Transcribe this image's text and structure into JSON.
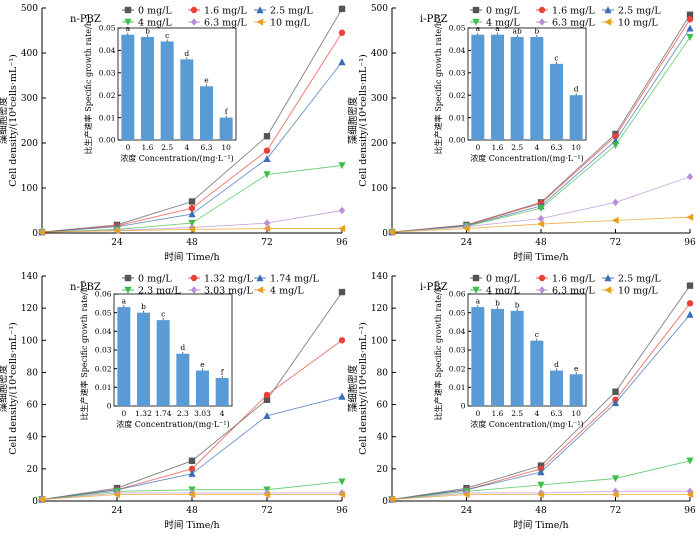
{
  "chart_data": [
    {
      "type": "line",
      "title": "n-PBZ",
      "xlabel": "时间 Time/h",
      "ylabel": "Cell density/(10⁴cells·mL⁻¹)",
      "ylabel_cn": "藻细胞密度",
      "x": [
        0,
        24,
        48,
        72,
        96
      ],
      "x_ticks": [
        "24",
        "48",
        "72",
        "96"
      ],
      "xlim": [
        0,
        96
      ],
      "ylim": [
        0,
        500
      ],
      "y_ticks": [
        0,
        100,
        200,
        300,
        400,
        500
      ],
      "series": [
        {
          "name": "0 mg/L",
          "color": "#555555",
          "marker": "square",
          "values": [
            2,
            18,
            70,
            215,
            498
          ]
        },
        {
          "name": "1.6 mg/L",
          "color": "#e8423a",
          "marker": "circle",
          "values": [
            2,
            16,
            55,
            183,
            445
          ]
        },
        {
          "name": "2.5 mg/L",
          "color": "#3a6db5",
          "marker": "triangle-up",
          "values": [
            2,
            14,
            42,
            165,
            380
          ]
        },
        {
          "name": "4 mg/L",
          "color": "#3cbf4a",
          "marker": "triangle-down",
          "values": [
            2,
            8,
            22,
            130,
            150
          ]
        },
        {
          "name": "6.3 mg/L",
          "color": "#b68fd8",
          "marker": "diamond",
          "values": [
            2,
            6,
            12,
            22,
            50
          ]
        },
        {
          "name": "10 mg/L",
          "color": "#e8a020",
          "marker": "triangle-left",
          "values": [
            2,
            5,
            8,
            10,
            10
          ]
        }
      ],
      "inset": {
        "type": "bar",
        "ylabel": "比生产速率 Specific growth rate/h⁻¹",
        "xlabel": "浓度 Concentration/(mg·L⁻¹)",
        "categories": [
          "0",
          "1.6",
          "2.5",
          "4",
          "6.3",
          "10"
        ],
        "values": [
          0.047,
          0.046,
          0.044,
          0.036,
          0.024,
          0.01
        ],
        "labels": [
          "a",
          "b",
          "c",
          "d",
          "e",
          "f"
        ],
        "ylim": [
          0,
          0.05
        ],
        "y_ticks": [
          "0.00",
          "0.01",
          "0.02",
          "0.03",
          "0.04",
          "0.05"
        ]
      }
    },
    {
      "type": "line",
      "title": "i-PBZ",
      "xlabel": "时间 Time/h",
      "ylabel": "Cell density/(10⁴cells·mL⁻¹)",
      "ylabel_cn": "藻细胞密度",
      "x": [
        0,
        24,
        48,
        72,
        96
      ],
      "x_ticks": [
        "24",
        "48",
        "72",
        "96"
      ],
      "xlim": [
        0,
        96
      ],
      "ylim": [
        0,
        500
      ],
      "y_ticks": [
        0,
        100,
        200,
        300,
        400,
        500
      ],
      "series": [
        {
          "name": "0 mg/L",
          "color": "#555555",
          "marker": "square",
          "values": [
            2,
            18,
            68,
            220,
            485
          ]
        },
        {
          "name": "1.6 mg/L",
          "color": "#e8423a",
          "marker": "circle",
          "values": [
            2,
            17,
            66,
            215,
            475
          ]
        },
        {
          "name": "2.5 mg/L",
          "color": "#3a6db5",
          "marker": "triangle-up",
          "values": [
            2,
            16,
            60,
            205,
            455
          ]
        },
        {
          "name": "4 mg/L",
          "color": "#3cbf4a",
          "marker": "triangle-down",
          "values": [
            2,
            15,
            55,
            195,
            435
          ]
        },
        {
          "name": "6.3 mg/L",
          "color": "#b68fd8",
          "marker": "diamond",
          "values": [
            2,
            14,
            32,
            68,
            125
          ]
        },
        {
          "name": "10 mg/L",
          "color": "#e8a020",
          "marker": "triangle-left",
          "values": [
            2,
            10,
            20,
            28,
            35
          ]
        }
      ],
      "inset": {
        "type": "bar",
        "ylabel": "比生产速率 Specific growth rate/h⁻¹",
        "xlabel": "浓度 Concentration/(mg·L⁻¹)",
        "categories": [
          "0",
          "1.6",
          "2.5",
          "4",
          "6.3",
          "10"
        ],
        "values": [
          0.047,
          0.047,
          0.046,
          0.046,
          0.034,
          0.02
        ],
        "labels": [
          "a",
          "a",
          "ab",
          "b",
          "c",
          "d"
        ],
        "ylim": [
          0,
          0.05
        ],
        "y_ticks": [
          "0.00",
          "0.01",
          "0.02",
          "0.03",
          "0.04",
          "0.05"
        ]
      }
    },
    {
      "type": "line",
      "title": "n-PBZ",
      "xlabel": "时间 Time/h",
      "ylabel": "Cell density/(10⁴cells·mL⁻¹)",
      "ylabel_cn": "藻细胞密度",
      "x": [
        0,
        24,
        48,
        72,
        96
      ],
      "x_ticks": [
        "24",
        "48",
        "72",
        "96"
      ],
      "xlim": [
        0,
        96
      ],
      "ylim": [
        0,
        140
      ],
      "y_ticks": [
        0,
        20,
        40,
        60,
        80,
        100,
        120,
        140
      ],
      "series": [
        {
          "name": "0 mg/L",
          "color": "#555555",
          "marker": "square",
          "values": [
            1,
            8,
            25,
            63,
            130
          ]
        },
        {
          "name": "1.32 mg/L",
          "color": "#e8423a",
          "marker": "circle",
          "values": [
            1,
            7,
            20,
            66,
            100
          ]
        },
        {
          "name": "1.74 mg/L",
          "color": "#3a6db5",
          "marker": "triangle-up",
          "values": [
            1,
            7,
            17,
            53,
            65
          ]
        },
        {
          "name": "2.3 mg/L",
          "color": "#3cbf4a",
          "marker": "triangle-down",
          "values": [
            1,
            6,
            7,
            7,
            12
          ]
        },
        {
          "name": "3.03 mg/L",
          "color": "#b68fd8",
          "marker": "diamond",
          "values": [
            1,
            5,
            5,
            5,
            5
          ]
        },
        {
          "name": "4 mg/L",
          "color": "#e8a020",
          "marker": "triangle-left",
          "values": [
            1,
            4,
            4,
            4,
            4
          ]
        }
      ],
      "inset": {
        "type": "bar",
        "ylabel": "比生产速率 Specific growth rate/h⁻¹",
        "xlabel": "浓度 Concentration/(mg·L⁻¹)",
        "categories": [
          "0",
          "1.32",
          "1.74",
          "2.3",
          "3.03",
          "4"
        ],
        "values": [
          0.053,
          0.05,
          0.046,
          0.028,
          0.019,
          0.015
        ],
        "labels": [
          "a",
          "b",
          "c",
          "d",
          "e",
          "f"
        ],
        "ylim": [
          0,
          0.06
        ],
        "y_ticks": [
          "0",
          "0.01",
          "0.02",
          "0.03",
          "0.04",
          "0.05",
          "0.06"
        ]
      }
    },
    {
      "type": "line",
      "title": "i-PBZ",
      "xlabel": "时间 Time/h",
      "ylabel": "Cell density/(10⁴cells·mL⁻¹)",
      "ylabel_cn": "藻细胞密度",
      "x": [
        0,
        24,
        48,
        72,
        96
      ],
      "x_ticks": [
        "24",
        "48",
        "72",
        "96"
      ],
      "xlim": [
        0,
        96
      ],
      "ylim": [
        0,
        140
      ],
      "y_ticks": [
        0,
        20,
        40,
        60,
        80,
        100,
        120,
        140
      ],
      "series": [
        {
          "name": "0 mg/L",
          "color": "#555555",
          "marker": "square",
          "values": [
            1,
            8,
            22,
            68,
            134
          ]
        },
        {
          "name": "1.6 mg/L",
          "color": "#e8423a",
          "marker": "circle",
          "values": [
            1,
            7,
            20,
            63,
            123
          ]
        },
        {
          "name": "2.5 mg/L",
          "color": "#3a6db5",
          "marker": "triangle-up",
          "values": [
            1,
            7,
            18,
            61,
            116
          ]
        },
        {
          "name": "4 mg/L",
          "color": "#3cbf4a",
          "marker": "triangle-down",
          "values": [
            1,
            6,
            10,
            14,
            25
          ]
        },
        {
          "name": "6.3 mg/L",
          "color": "#b68fd8",
          "marker": "diamond",
          "values": [
            1,
            5,
            5,
            6,
            6
          ]
        },
        {
          "name": "10 mg/L",
          "color": "#e8a020",
          "marker": "triangle-left",
          "values": [
            1,
            4,
            4,
            4,
            4
          ]
        }
      ],
      "inset": {
        "type": "bar",
        "ylabel": "比生产速率 Specific growth rate/h⁻¹",
        "xlabel": "浓度 Concentration/(mg·L⁻¹)",
        "categories": [
          "0",
          "1.6",
          "2.5",
          "4",
          "6.3",
          "10"
        ],
        "values": [
          0.053,
          0.052,
          0.051,
          0.035,
          0.019,
          0.017
        ],
        "labels": [
          "a",
          "b",
          "b",
          "c",
          "d",
          "e"
        ],
        "ylim": [
          0,
          0.06
        ],
        "y_ticks": [
          "0",
          "0.01",
          "0.02",
          "0.03",
          "0.04",
          "0.05",
          "0.06"
        ]
      }
    }
  ]
}
